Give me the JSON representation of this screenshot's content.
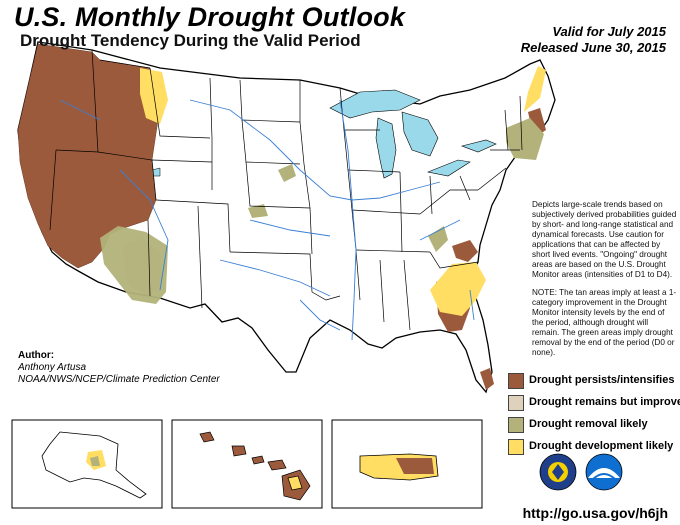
{
  "header": {
    "title": "U.S. Monthly Drought Outlook",
    "subtitle": "Drought Tendency During the Valid Period",
    "valid": "Valid for July 2015",
    "released": "Released June 30, 2015"
  },
  "description": {
    "para1": "Depicts large-scale trends based on subjectively derived probabilities guided by short- and long-range statistical and dynamical forecasts. Use caution for applications that can be affected by short lived events. \"Ongoing\" drought areas are based on the U.S. Drought Monitor areas (intensities of D1 to D4).",
    "para2": "NOTE: The tan areas imply at least a 1-category improvement in the Drought Monitor intensity levels by the end of the period, although drought will remain. The green areas imply drought removal by the end of the period (D0 or none)."
  },
  "author": {
    "heading": "Author:",
    "name": "Anthony Artusa",
    "org": "NOAA/NWS/NCEP/Climate Prediction Center"
  },
  "legend": [
    {
      "label": "Drought persists/intensifies",
      "color": "#9c5a3c"
    },
    {
      "label": "Drought remains but improves",
      "color": "#ded2bc"
    },
    {
      "label": "Drought removal likely",
      "color": "#b2b27a"
    },
    {
      "label": "Drought development likely",
      "color": "#ffde63"
    }
  ],
  "footer": {
    "url": "http://go.usa.gov/h6jh"
  },
  "colors": {
    "water": "#99d9ea",
    "river": "#3a7fd5",
    "land": "#ffffff"
  }
}
